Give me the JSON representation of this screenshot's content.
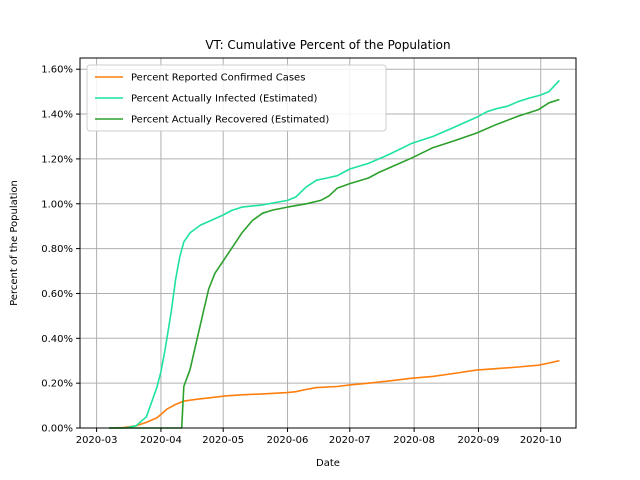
{
  "chart_data": {
    "type": "line",
    "title": "VT: Cumulative Percent of the Population",
    "xlabel": "Date",
    "ylabel": "Percent of the Population",
    "xlim": [
      "2020-02-22",
      "2020-10-18"
    ],
    "ylim": [
      0,
      1.65
    ],
    "x_ticks": [
      "2020-03",
      "2020-04",
      "2020-05",
      "2020-06",
      "2020-07",
      "2020-08",
      "2020-09",
      "2020-10"
    ],
    "y_ticks": [
      "0.00%",
      "0.20%",
      "0.40%",
      "0.60%",
      "0.80%",
      "1.00%",
      "1.20%",
      "1.40%",
      "1.60%"
    ],
    "grid": true,
    "legend_position": "upper-left",
    "series": [
      {
        "name": "Percent Reported Confirmed Cases",
        "color": "#ff7f0e",
        "points": [
          [
            "2020-03-07",
            0.0
          ],
          [
            "2020-03-14",
            0.002
          ],
          [
            "2020-03-20",
            0.01
          ],
          [
            "2020-03-25",
            0.025
          ],
          [
            "2020-03-30",
            0.045
          ],
          [
            "2020-04-01",
            0.06
          ],
          [
            "2020-04-04",
            0.085
          ],
          [
            "2020-04-08",
            0.105
          ],
          [
            "2020-04-12",
            0.12
          ],
          [
            "2020-04-18",
            0.128
          ],
          [
            "2020-04-25",
            0.135
          ],
          [
            "2020-05-02",
            0.143
          ],
          [
            "2020-05-10",
            0.148
          ],
          [
            "2020-05-20",
            0.152
          ],
          [
            "2020-06-01",
            0.158
          ],
          [
            "2020-06-05",
            0.162
          ],
          [
            "2020-06-10",
            0.172
          ],
          [
            "2020-06-15",
            0.18
          ],
          [
            "2020-06-25",
            0.185
          ],
          [
            "2020-07-01",
            0.192
          ],
          [
            "2020-07-10",
            0.2
          ],
          [
            "2020-07-20",
            0.21
          ],
          [
            "2020-07-31",
            0.222
          ],
          [
            "2020-08-10",
            0.23
          ],
          [
            "2020-08-20",
            0.243
          ],
          [
            "2020-08-31",
            0.258
          ],
          [
            "2020-09-10",
            0.265
          ],
          [
            "2020-09-20",
            0.272
          ],
          [
            "2020-09-30",
            0.28
          ],
          [
            "2020-10-05",
            0.29
          ],
          [
            "2020-10-10",
            0.3
          ]
        ]
      },
      {
        "name": "Percent Actually Infected (Estimated)",
        "color": "#1de2a0",
        "points": [
          [
            "2020-03-07",
            0.0
          ],
          [
            "2020-03-15",
            0.0
          ],
          [
            "2020-03-20",
            0.01
          ],
          [
            "2020-03-25",
            0.05
          ],
          [
            "2020-03-30",
            0.18
          ],
          [
            "2020-04-01",
            0.25
          ],
          [
            "2020-04-03",
            0.35
          ],
          [
            "2020-04-06",
            0.52
          ],
          [
            "2020-04-08",
            0.66
          ],
          [
            "2020-04-10",
            0.76
          ],
          [
            "2020-04-12",
            0.83
          ],
          [
            "2020-04-15",
            0.87
          ],
          [
            "2020-04-20",
            0.905
          ],
          [
            "2020-04-25",
            0.925
          ],
          [
            "2020-05-01",
            0.95
          ],
          [
            "2020-05-05",
            0.97
          ],
          [
            "2020-05-10",
            0.985
          ],
          [
            "2020-05-20",
            0.995
          ],
          [
            "2020-06-01",
            1.015
          ],
          [
            "2020-06-05",
            1.03
          ],
          [
            "2020-06-10",
            1.075
          ],
          [
            "2020-06-15",
            1.105
          ],
          [
            "2020-06-20",
            1.115
          ],
          [
            "2020-06-25",
            1.125
          ],
          [
            "2020-07-01",
            1.155
          ],
          [
            "2020-07-10",
            1.18
          ],
          [
            "2020-07-20",
            1.22
          ],
          [
            "2020-07-31",
            1.27
          ],
          [
            "2020-08-10",
            1.3
          ],
          [
            "2020-08-20",
            1.34
          ],
          [
            "2020-08-31",
            1.385
          ],
          [
            "2020-09-05",
            1.41
          ],
          [
            "2020-09-10",
            1.425
          ],
          [
            "2020-09-15",
            1.435
          ],
          [
            "2020-09-20",
            1.455
          ],
          [
            "2020-09-25",
            1.47
          ],
          [
            "2020-10-01",
            1.485
          ],
          [
            "2020-10-05",
            1.5
          ],
          [
            "2020-10-10",
            1.55
          ]
        ]
      },
      {
        "name": "Percent Actually Recovered (Estimated)",
        "color": "#2ca02c",
        "points": [
          [
            "2020-03-07",
            0.0
          ],
          [
            "2020-04-10",
            0.0
          ],
          [
            "2020-04-11",
            0.0
          ],
          [
            "2020-04-12",
            0.185
          ],
          [
            "2020-04-15",
            0.26
          ],
          [
            "2020-04-18",
            0.38
          ],
          [
            "2020-04-21",
            0.5
          ],
          [
            "2020-04-24",
            0.62
          ],
          [
            "2020-04-27",
            0.69
          ],
          [
            "2020-05-01",
            0.745
          ],
          [
            "2020-05-05",
            0.8
          ],
          [
            "2020-05-10",
            0.87
          ],
          [
            "2020-05-15",
            0.925
          ],
          [
            "2020-05-20",
            0.958
          ],
          [
            "2020-05-25",
            0.972
          ],
          [
            "2020-06-01",
            0.985
          ],
          [
            "2020-06-10",
            1.0
          ],
          [
            "2020-06-17",
            1.015
          ],
          [
            "2020-06-21",
            1.035
          ],
          [
            "2020-06-25",
            1.07
          ],
          [
            "2020-07-01",
            1.09
          ],
          [
            "2020-07-10",
            1.115
          ],
          [
            "2020-07-15",
            1.14
          ],
          [
            "2020-07-20",
            1.16
          ],
          [
            "2020-07-31",
            1.205
          ],
          [
            "2020-08-10",
            1.25
          ],
          [
            "2020-08-20",
            1.28
          ],
          [
            "2020-08-31",
            1.315
          ],
          [
            "2020-09-10",
            1.355
          ],
          [
            "2020-09-20",
            1.39
          ],
          [
            "2020-09-30",
            1.42
          ],
          [
            "2020-10-05",
            1.45
          ],
          [
            "2020-10-10",
            1.465
          ]
        ]
      }
    ]
  }
}
